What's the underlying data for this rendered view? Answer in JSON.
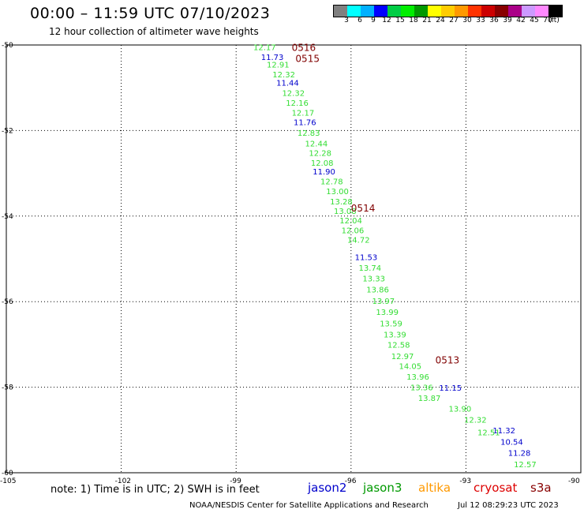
{
  "title": "00:00 – 11:59 UTC 07/10/2023",
  "subtitle": "12 hour collection of altimeter wave heights",
  "legend": {
    "colors": [
      "#808080",
      "#00ffff",
      "#00b0ff",
      "#0000ff",
      "#00cc44",
      "#00ee00",
      "#009900",
      "#ffff00",
      "#ffcc00",
      "#ff9900",
      "#ff3300",
      "#cc0000",
      "#880000",
      "#aa0088",
      "#cc99ff",
      "#ff88ff",
      "#000000"
    ],
    "labels": [
      "3",
      "6",
      "9",
      "12",
      "15",
      "18",
      "21",
      "24",
      "27",
      "30",
      "33",
      "36",
      "39",
      "42",
      "45",
      "70",
      "(ft)"
    ]
  },
  "axes": {
    "x_ticks": [
      "-105",
      "-102",
      "-99",
      "-96",
      "-93",
      "-90"
    ],
    "y_ticks": [
      "-50",
      "-52",
      "-54",
      "-56",
      "-58",
      "-60"
    ]
  },
  "colors": {
    "jason2": "#0000cc",
    "jason3": "#009900",
    "s3a_green": "#33dd33",
    "pass": "#800000",
    "altika": "#ff9900",
    "cryosat": "#dd0000",
    "s3a": "#880000"
  },
  "chart_data": {
    "type": "scatter",
    "xlim": [
      -105,
      -90
    ],
    "ylim": [
      -60,
      -50
    ],
    "grid": true,
    "series": [
      {
        "name": "jason2",
        "color": "#0000cc",
        "points": [
          {
            "lon": -98.35,
            "lat": -50.28,
            "v": "11.73"
          },
          {
            "lon": -97.95,
            "lat": -50.88,
            "v": "11.44"
          },
          {
            "lon": -97.5,
            "lat": -51.8,
            "v": "11.76"
          },
          {
            "lon": -97.0,
            "lat": -52.95,
            "v": "11.90"
          },
          {
            "lon": -95.9,
            "lat": -54.95,
            "v": "11.53"
          },
          {
            "lon": -93.7,
            "lat": -58.01,
            "v": "11.15"
          },
          {
            "lon": -92.3,
            "lat": -59.0,
            "v": "11.32"
          },
          {
            "lon": -92.1,
            "lat": -59.27,
            "v": "10.54"
          },
          {
            "lon": -91.9,
            "lat": -59.53,
            "v": "11.28"
          }
        ]
      },
      {
        "name": "s3a",
        "color": "#33dd33",
        "points": [
          {
            "lon": -98.55,
            "lat": -50.05,
            "v": "12.17"
          },
          {
            "lon": -98.2,
            "lat": -50.45,
            "v": "12.91"
          },
          {
            "lon": -98.05,
            "lat": -50.68,
            "v": "12.32"
          },
          {
            "lon": -97.8,
            "lat": -51.12,
            "v": "12.32"
          },
          {
            "lon": -97.7,
            "lat": -51.35,
            "v": "12.16"
          },
          {
            "lon": -97.55,
            "lat": -51.58,
            "v": "12.17"
          },
          {
            "lon": -97.4,
            "lat": -52.05,
            "v": "12.83"
          },
          {
            "lon": -97.2,
            "lat": -52.3,
            "v": "12.44"
          },
          {
            "lon": -97.1,
            "lat": -52.52,
            "v": "12.28"
          },
          {
            "lon": -97.05,
            "lat": -52.75,
            "v": "12.08"
          },
          {
            "lon": -96.8,
            "lat": -53.18,
            "v": "12.78"
          },
          {
            "lon": -96.65,
            "lat": -53.41,
            "v": "13.00"
          },
          {
            "lon": -96.55,
            "lat": -53.65,
            "v": "13.28"
          },
          {
            "lon": -96.45,
            "lat": -53.87,
            "v": "13.08"
          },
          {
            "lon": -96.3,
            "lat": -54.1,
            "v": "12.04"
          },
          {
            "lon": -96.25,
            "lat": -54.33,
            "v": "12.06"
          },
          {
            "lon": -96.1,
            "lat": -54.55,
            "v": "14.72"
          },
          {
            "lon": -95.8,
            "lat": -55.2,
            "v": "13.74"
          },
          {
            "lon": -95.7,
            "lat": -55.45,
            "v": "13.33"
          },
          {
            "lon": -95.6,
            "lat": -55.71,
            "v": "13.86"
          },
          {
            "lon": -95.45,
            "lat": -55.98,
            "v": "13.97"
          },
          {
            "lon": -95.35,
            "lat": -56.24,
            "v": "13.99"
          },
          {
            "lon": -95.25,
            "lat": -56.5,
            "v": "13.59"
          },
          {
            "lon": -95.15,
            "lat": -56.76,
            "v": "13.39"
          },
          {
            "lon": -95.05,
            "lat": -57.0,
            "v": "12.58"
          },
          {
            "lon": -94.95,
            "lat": -57.27,
            "v": "12.97"
          },
          {
            "lon": -94.75,
            "lat": -57.5,
            "v": "14.05"
          },
          {
            "lon": -94.55,
            "lat": -57.75,
            "v": "13.96"
          },
          {
            "lon": -94.45,
            "lat": -58.0,
            "v": "13.36"
          },
          {
            "lon": -94.25,
            "lat": -58.25,
            "v": "13.87"
          },
          {
            "lon": -93.45,
            "lat": -58.5,
            "v": "13.90"
          },
          {
            "lon": -93.05,
            "lat": -58.75,
            "v": "12.32"
          },
          {
            "lon": -92.7,
            "lat": -59.05,
            "v": "12.51"
          },
          {
            "lon": -91.75,
            "lat": -59.8,
            "v": "12.57"
          }
        ]
      }
    ],
    "pass_labels": [
      {
        "lon": -97.55,
        "lat": -50.05,
        "v": "0516"
      },
      {
        "lon": -97.45,
        "lat": -50.3,
        "v": "0515"
      },
      {
        "lon": -96.0,
        "lat": -53.8,
        "v": "0514"
      },
      {
        "lon": -93.8,
        "lat": -57.35,
        "v": "0513"
      }
    ]
  },
  "note": "note:  1) Time is in UTC;  2) SWH is in feet",
  "satellites": [
    "jason2",
    "jason3",
    "altika",
    "cryosat",
    "s3a"
  ],
  "footer": "NOAA/NESDIS Center for Satellite Applications and Research",
  "timestamp": "Jul 12 08:29:23 UTC 2023"
}
